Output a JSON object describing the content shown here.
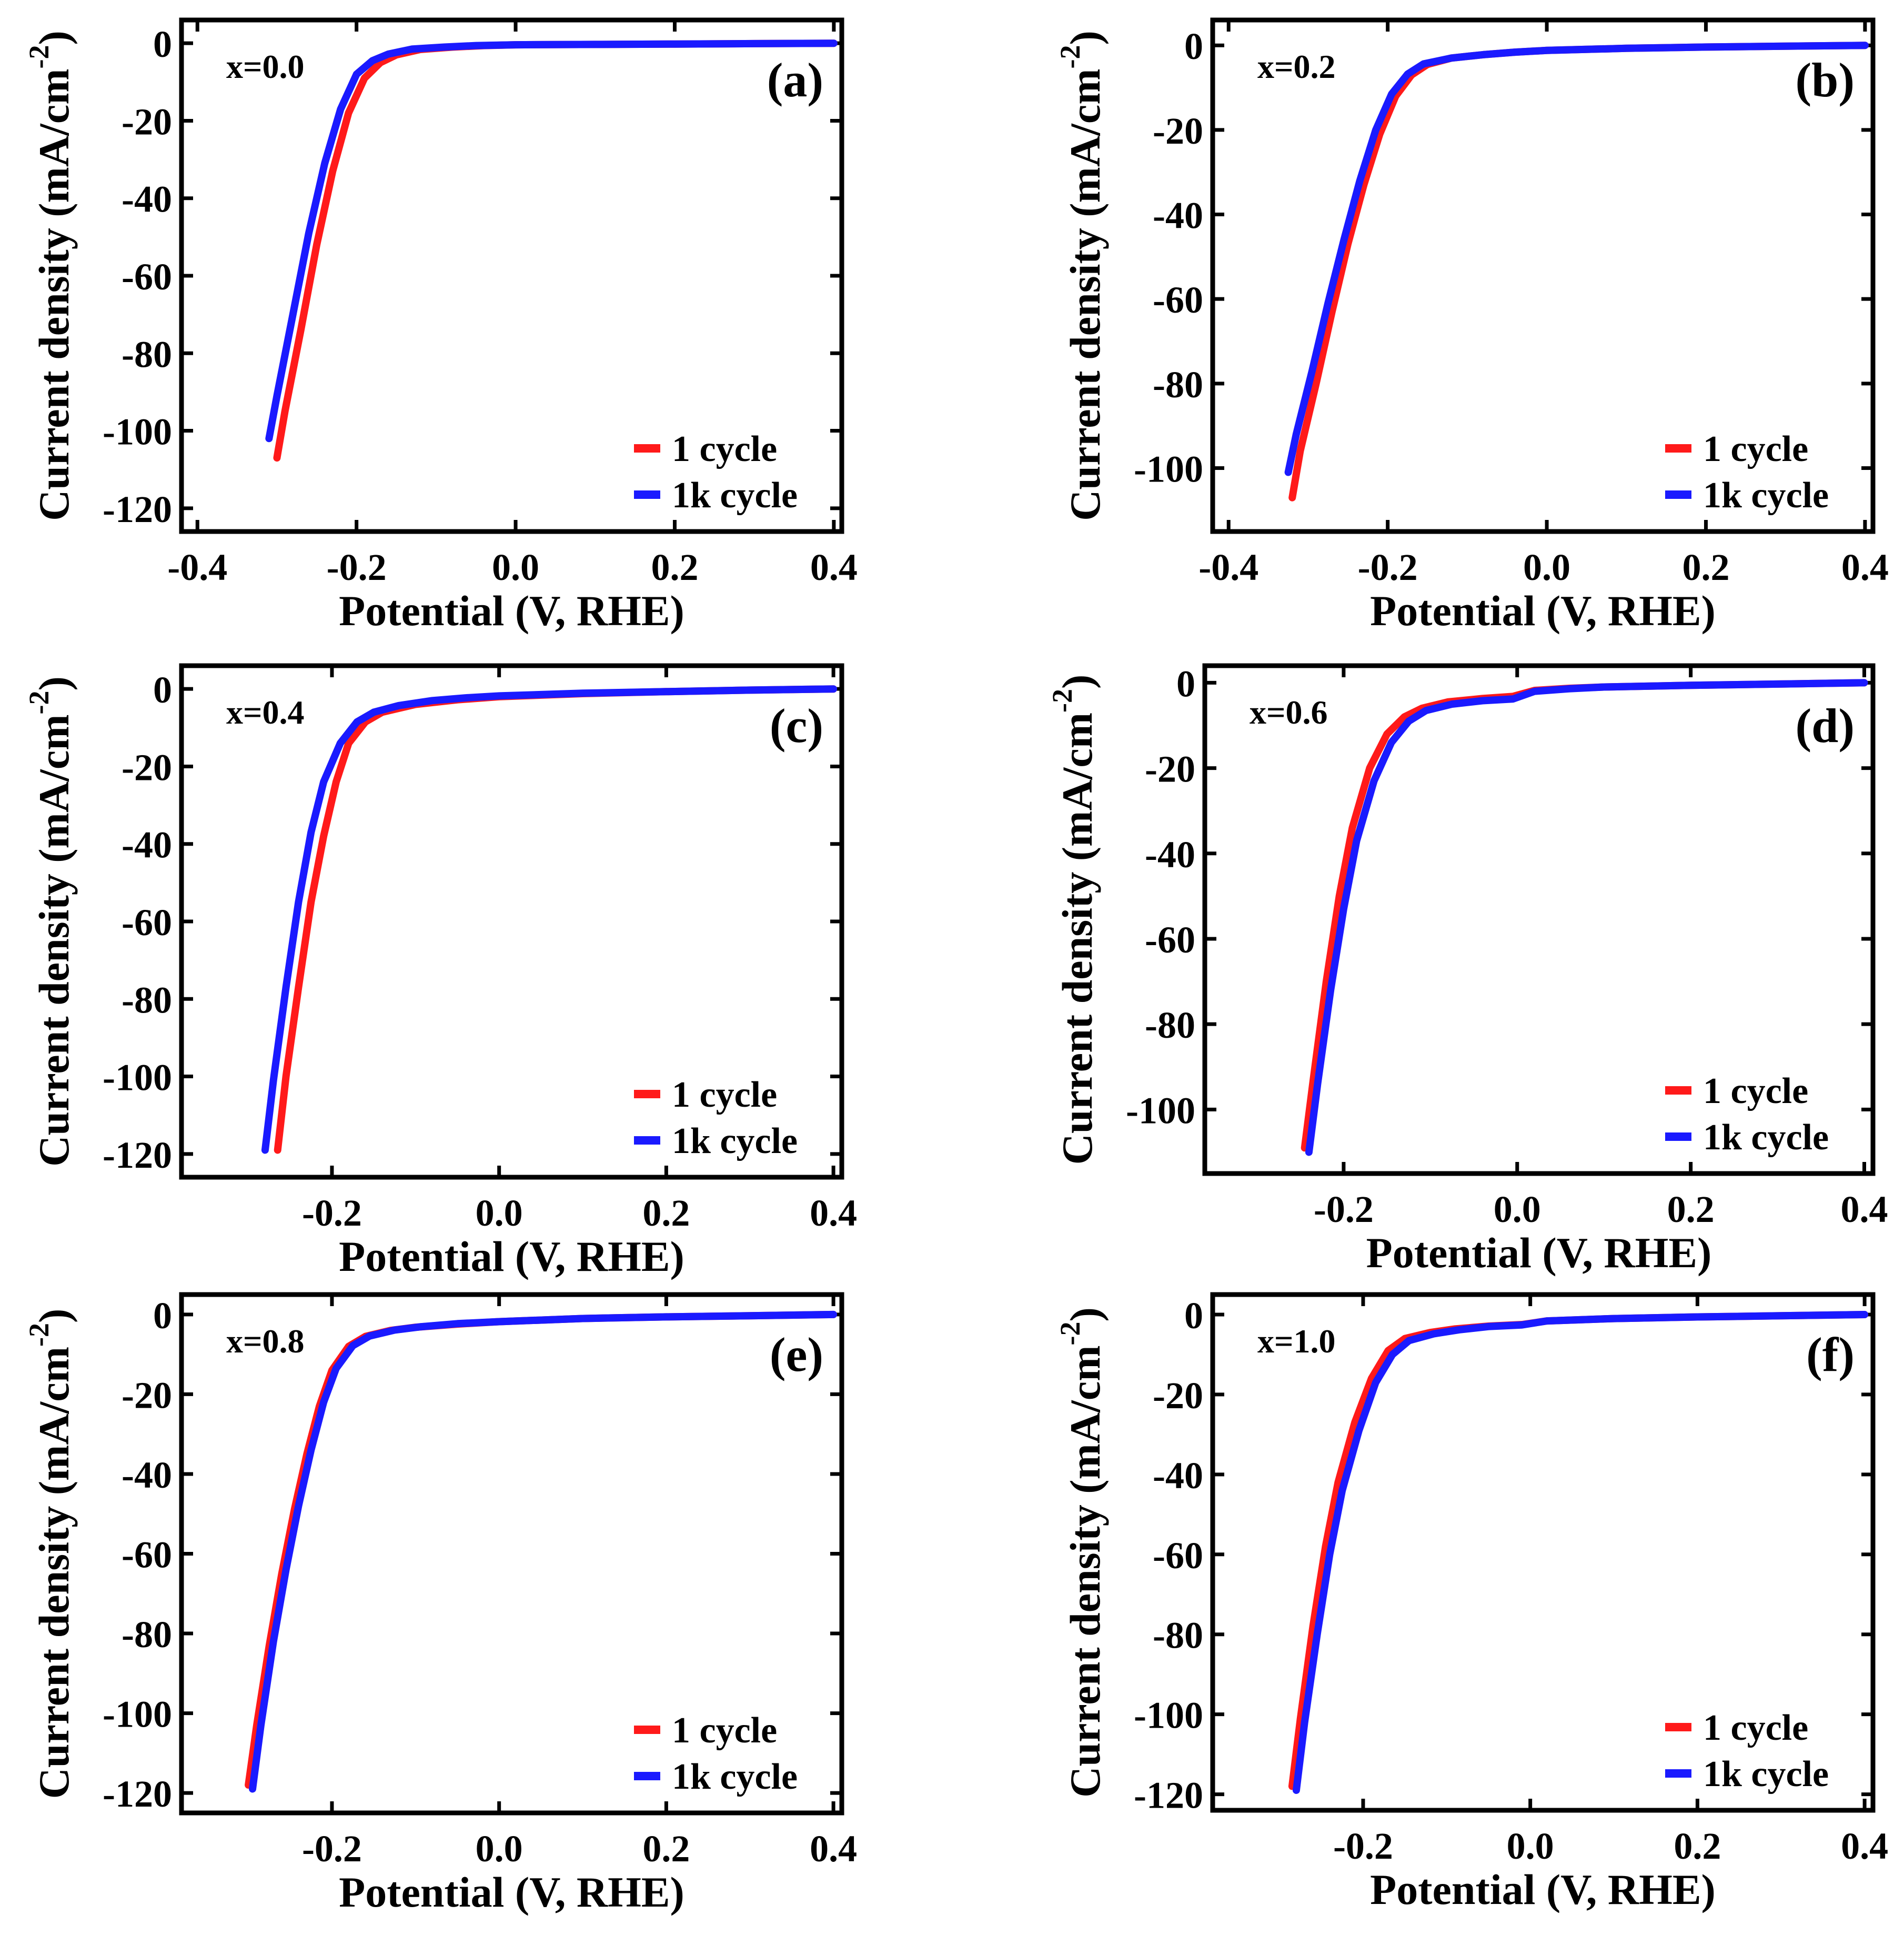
{
  "colors": {
    "cycle_1": "#ff1a1a",
    "cycle_1k": "#1a1aff",
    "axis": "#000000"
  },
  "chart_data": [
    {
      "id": "a",
      "type": "line",
      "panel_label": "(a)",
      "annotation": "x=0.0",
      "xlabel": "Potential (V, RHE)",
      "ylabel": "Current density (mA/cm",
      "ylabel_superscript": "-2",
      "ylabel_close": ")",
      "xlim": [
        -0.42,
        0.41
      ],
      "ylim": [
        -126,
        6
      ],
      "xticks": [
        -0.4,
        -0.2,
        0.0,
        0.2,
        0.4
      ],
      "xtick_labels": [
        "-0.4",
        "-0.2",
        "0.0",
        "0.2",
        "0.4"
      ],
      "yticks": [
        0,
        -20,
        -40,
        -60,
        -80,
        -100,
        -120
      ],
      "ytick_labels": [
        "0",
        "-20",
        "-40",
        "-60",
        "-80",
        "-100",
        "-120"
      ],
      "legend": {
        "position": "bottom-right",
        "entries": [
          "1 cycle",
          "1k cycle"
        ]
      },
      "series": [
        {
          "name": "1 cycle",
          "color_key": "cycle_1",
          "x": [
            -0.3,
            -0.29,
            -0.27,
            -0.25,
            -0.23,
            -0.21,
            -0.19,
            -0.17,
            -0.15,
            -0.12,
            -0.08,
            -0.04,
            0.0,
            0.1,
            0.2,
            0.3,
            0.4
          ],
          "y": [
            -107,
            -95,
            -74,
            -52,
            -33,
            -18,
            -9,
            -5,
            -3,
            -1.6,
            -1,
            -0.6,
            -0.4,
            -0.3,
            -0.2,
            -0.1,
            0
          ]
        },
        {
          "name": "1k cycle",
          "color_key": "cycle_1k",
          "x": [
            -0.31,
            -0.3,
            -0.28,
            -0.26,
            -0.24,
            -0.22,
            -0.2,
            -0.18,
            -0.16,
            -0.13,
            -0.09,
            -0.05,
            0.0,
            0.1,
            0.2,
            0.3,
            0.4
          ],
          "y": [
            -102,
            -91,
            -70,
            -49,
            -31,
            -17,
            -8,
            -4.5,
            -2.8,
            -1.5,
            -1,
            -0.6,
            -0.4,
            -0.3,
            -0.2,
            -0.1,
            0
          ]
        }
      ]
    },
    {
      "id": "b",
      "type": "line",
      "panel_label": "(b)",
      "annotation": "x=0.2",
      "xlabel": "Potential (V, RHE)",
      "ylabel": "Current density (mA/cm",
      "ylabel_superscript": "-2",
      "ylabel_close": ")",
      "xlim": [
        -0.42,
        0.41
      ],
      "ylim": [
        -115,
        6
      ],
      "xticks": [
        -0.4,
        -0.2,
        0.0,
        0.2,
        0.4
      ],
      "xtick_labels": [
        "-0.4",
        "-0.2",
        "0.0",
        "0.2",
        "0.4"
      ],
      "yticks": [
        0,
        -20,
        -40,
        -60,
        -80,
        -100
      ],
      "ytick_labels": [
        "0",
        "-20",
        "-40",
        "-60",
        "-80",
        "-100"
      ],
      "legend": {
        "position": "bottom-right",
        "entries": [
          "1 cycle",
          "1k cycle"
        ]
      },
      "series": [
        {
          "name": "1 cycle",
          "color_key": "cycle_1",
          "x": [
            -0.32,
            -0.31,
            -0.29,
            -0.27,
            -0.25,
            -0.23,
            -0.21,
            -0.19,
            -0.17,
            -0.15,
            -0.12,
            -0.08,
            -0.04,
            0.0,
            0.1,
            0.2,
            0.3,
            0.4
          ],
          "y": [
            -107,
            -96,
            -80,
            -63,
            -47,
            -33,
            -21,
            -12,
            -7,
            -4.5,
            -3,
            -2.2,
            -1.6,
            -1.2,
            -0.7,
            -0.4,
            -0.2,
            0
          ]
        },
        {
          "name": "1k cycle",
          "color_key": "cycle_1k",
          "x": [
            -0.325,
            -0.315,
            -0.295,
            -0.275,
            -0.255,
            -0.235,
            -0.215,
            -0.195,
            -0.175,
            -0.155,
            -0.12,
            -0.08,
            -0.04,
            0.0,
            0.1,
            0.2,
            0.3,
            0.4
          ],
          "y": [
            -101,
            -92,
            -77,
            -61,
            -46,
            -32,
            -20,
            -11.5,
            -6.8,
            -4.4,
            -3,
            -2.2,
            -1.6,
            -1.2,
            -0.7,
            -0.4,
            -0.2,
            0
          ]
        }
      ]
    },
    {
      "id": "c",
      "type": "line",
      "panel_label": "(c)",
      "annotation": "x=0.4",
      "xlabel": "Potential (V, RHE)",
      "ylabel": "Current density (mA/cm",
      "ylabel_superscript": "-2",
      "ylabel_close": ")",
      "xlim": [
        -0.38,
        0.41
      ],
      "ylim": [
        -126,
        6
      ],
      "xticks": [
        -0.2,
        0.0,
        0.2,
        0.4
      ],
      "xtick_labels": [
        "-0.2",
        "0.0",
        "0.2",
        "0.4"
      ],
      "yticks": [
        0,
        -20,
        -40,
        -60,
        -80,
        -100,
        -120
      ],
      "ytick_labels": [
        "0",
        "-20",
        "-40",
        "-60",
        "-80",
        "-100",
        "-120"
      ],
      "legend": {
        "position": "bottom-right",
        "entries": [
          "1 cycle",
          "1k cycle"
        ]
      },
      "series": [
        {
          "name": "1 cycle",
          "color_key": "cycle_1",
          "x": [
            -0.265,
            -0.255,
            -0.24,
            -0.225,
            -0.21,
            -0.195,
            -0.18,
            -0.16,
            -0.14,
            -0.1,
            -0.05,
            0.0,
            0.1,
            0.2,
            0.3,
            0.4
          ],
          "y": [
            -119,
            -100,
            -77,
            -55,
            -38,
            -24,
            -14,
            -8.5,
            -6,
            -4,
            -2.8,
            -2,
            -1.2,
            -0.7,
            -0.3,
            0
          ]
        },
        {
          "name": "1k cycle",
          "color_key": "cycle_1k",
          "x": [
            -0.28,
            -0.27,
            -0.255,
            -0.24,
            -0.225,
            -0.21,
            -0.19,
            -0.17,
            -0.15,
            -0.12,
            -0.08,
            -0.04,
            0.0,
            0.1,
            0.2,
            0.3,
            0.4
          ],
          "y": [
            -119,
            -101,
            -77,
            -55,
            -37,
            -24,
            -14,
            -8.5,
            -6,
            -4.3,
            -3,
            -2.3,
            -1.8,
            -1.1,
            -0.7,
            -0.3,
            0
          ]
        }
      ]
    },
    {
      "id": "d",
      "type": "line",
      "panel_label": "(d)",
      "annotation": "x=0.6",
      "xlabel": "Potential (V, RHE)",
      "ylabel": "Current density (mA/cm",
      "ylabel_superscript": "-2",
      "ylabel_close": ")",
      "xlim": [
        -0.36,
        0.41
      ],
      "ylim": [
        -115,
        4
      ],
      "xticks": [
        -0.2,
        0.0,
        0.2,
        0.4
      ],
      "xtick_labels": [
        "-0.2",
        "0.0",
        "0.2",
        "0.4"
      ],
      "yticks": [
        0,
        -20,
        -40,
        -60,
        -80,
        -100
      ],
      "ytick_labels": [
        "0",
        "-20",
        "-40",
        "-60",
        "-80",
        "-100"
      ],
      "legend": {
        "position": "bottom-right",
        "entries": [
          "1 cycle",
          "1k cycle"
        ]
      },
      "series": [
        {
          "name": "1 cycle",
          "color_key": "cycle_1",
          "x": [
            -0.245,
            -0.235,
            -0.22,
            -0.205,
            -0.19,
            -0.17,
            -0.15,
            -0.13,
            -0.11,
            -0.08,
            -0.04,
            -0.005,
            0.02,
            0.06,
            0.1,
            0.2,
            0.3,
            0.4
          ],
          "y": [
            -109,
            -93,
            -70,
            -50,
            -34,
            -20,
            -12,
            -8,
            -6,
            -4.5,
            -3.7,
            -3.2,
            -1.8,
            -1.3,
            -1,
            -0.6,
            -0.3,
            0
          ]
        },
        {
          "name": "1k cycle",
          "color_key": "cycle_1k",
          "x": [
            -0.24,
            -0.23,
            -0.215,
            -0.2,
            -0.185,
            -0.165,
            -0.145,
            -0.125,
            -0.105,
            -0.075,
            -0.04,
            -0.005,
            0.02,
            0.06,
            0.1,
            0.2,
            0.3,
            0.4
          ],
          "y": [
            -110,
            -94,
            -72,
            -53,
            -37,
            -23,
            -14,
            -9,
            -6.5,
            -5,
            -4.2,
            -3.8,
            -2,
            -1.4,
            -1,
            -0.6,
            -0.3,
            0
          ]
        }
      ]
    },
    {
      "id": "e",
      "type": "line",
      "panel_label": "(e)",
      "annotation": "x=0.8",
      "xlabel": "Potential (V, RHE)",
      "ylabel": "Current density (mA/cm",
      "ylabel_superscript": "-2",
      "ylabel_close": ")",
      "xlim": [
        -0.38,
        0.41
      ],
      "ylim": [
        -125,
        5
      ],
      "xticks": [
        -0.2,
        0.0,
        0.2,
        0.4
      ],
      "xtick_labels": [
        "-0.2",
        "0.0",
        "0.2",
        "0.4"
      ],
      "yticks": [
        0,
        -20,
        -40,
        -60,
        -80,
        -100,
        -120
      ],
      "ytick_labels": [
        "0",
        "-20",
        "-40",
        "-60",
        "-80",
        "-100",
        "-120"
      ],
      "legend": {
        "position": "bottom-right",
        "entries": [
          "1 cycle",
          "1k cycle"
        ]
      },
      "series": [
        {
          "name": "1 cycle",
          "color_key": "cycle_1",
          "x": [
            -0.3,
            -0.29,
            -0.275,
            -0.26,
            -0.245,
            -0.23,
            -0.215,
            -0.2,
            -0.18,
            -0.16,
            -0.13,
            -0.1,
            -0.05,
            0.0,
            0.1,
            0.2,
            0.3,
            0.4
          ],
          "y": [
            -118,
            -103,
            -83,
            -65,
            -49,
            -35,
            -23,
            -14,
            -8,
            -5.5,
            -4,
            -3.2,
            -2.4,
            -1.8,
            -1,
            -0.6,
            -0.3,
            0
          ]
        },
        {
          "name": "1k cycle",
          "color_key": "cycle_1k",
          "x": [
            -0.295,
            -0.285,
            -0.27,
            -0.255,
            -0.24,
            -0.225,
            -0.21,
            -0.195,
            -0.175,
            -0.155,
            -0.125,
            -0.095,
            -0.05,
            0.0,
            0.1,
            0.2,
            0.3,
            0.4
          ],
          "y": [
            -119,
            -103,
            -82,
            -64,
            -48,
            -34,
            -22,
            -13.5,
            -7.8,
            -5.4,
            -3.9,
            -3.1,
            -2.3,
            -1.8,
            -1,
            -0.6,
            -0.3,
            0
          ]
        }
      ]
    },
    {
      "id": "f",
      "type": "line",
      "panel_label": "(f)",
      "annotation": "x=1.0",
      "xlabel": "Potential (V, RHE)",
      "ylabel": "Current density (mA/cm",
      "ylabel_superscript": "-2",
      "ylabel_close": ")",
      "xlim": [
        -0.38,
        0.41
      ],
      "ylim": [
        -124,
        5
      ],
      "xticks": [
        -0.2,
        0.0,
        0.2,
        0.4
      ],
      "xtick_labels": [
        "-0.2",
        "0.0",
        "0.2",
        "0.4"
      ],
      "yticks": [
        0,
        -20,
        -40,
        -60,
        -80,
        -100,
        -120
      ],
      "ytick_labels": [
        "0",
        "-20",
        "-40",
        "-60",
        "-80",
        "-100",
        "-120"
      ],
      "legend": {
        "position": "bottom-right",
        "entries": [
          "1 cycle",
          "1k cycle"
        ]
      },
      "series": [
        {
          "name": "1 cycle",
          "color_key": "cycle_1",
          "x": [
            -0.285,
            -0.275,
            -0.26,
            -0.245,
            -0.23,
            -0.21,
            -0.19,
            -0.17,
            -0.15,
            -0.12,
            -0.09,
            -0.05,
            -0.01,
            0.02,
            0.1,
            0.2,
            0.3,
            0.4
          ],
          "y": [
            -118,
            -101,
            -78,
            -58,
            -42,
            -27,
            -16,
            -9,
            -6,
            -4.5,
            -3.6,
            -2.9,
            -2.5,
            -1.6,
            -1,
            -0.6,
            -0.3,
            0
          ]
        },
        {
          "name": "1k cycle",
          "color_key": "cycle_1k",
          "x": [
            -0.28,
            -0.27,
            -0.255,
            -0.24,
            -0.225,
            -0.205,
            -0.185,
            -0.165,
            -0.145,
            -0.115,
            -0.085,
            -0.05,
            -0.01,
            0.02,
            0.1,
            0.2,
            0.3,
            0.4
          ],
          "y": [
            -119,
            -102,
            -80,
            -60,
            -44,
            -29,
            -17,
            -10,
            -6.5,
            -4.8,
            -3.8,
            -3,
            -2.6,
            -1.6,
            -1,
            -0.6,
            -0.3,
            0
          ]
        }
      ]
    }
  ]
}
